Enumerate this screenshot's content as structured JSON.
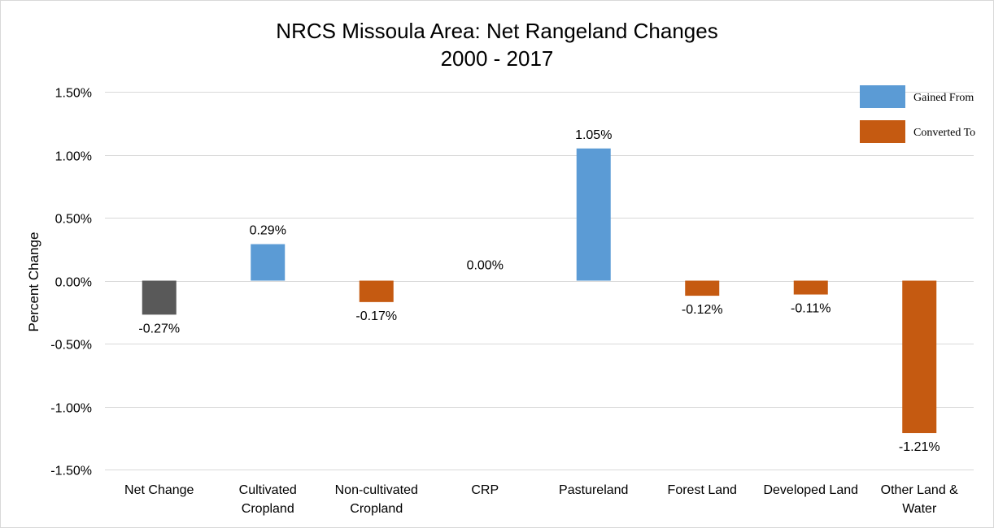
{
  "chart_data": {
    "type": "bar",
    "title": [
      "NRCS Missoula Area: Net Rangeland Changes",
      "2000 - 2017"
    ],
    "ylabel": "Percent Change",
    "xlabel": "",
    "ylim": [
      -1.5,
      1.5
    ],
    "yticks": [
      1.5,
      1.0,
      0.5,
      0.0,
      -0.5,
      -1.0,
      -1.5
    ],
    "ytick_labels": [
      "1.50%",
      "1.00%",
      "0.50%",
      "0.00%",
      "-0.50%",
      "-1.00%",
      "-1.50%"
    ],
    "grid": true,
    "categories": [
      [
        "Net Change"
      ],
      [
        "Cultivated",
        "Cropland"
      ],
      [
        "Non-cultivated",
        "Cropland"
      ],
      [
        "CRP"
      ],
      [
        "Pastureland"
      ],
      [
        "Forest Land"
      ],
      [
        "Developed Land"
      ],
      [
        "Other Land &",
        "Water"
      ]
    ],
    "values": [
      -0.27,
      0.29,
      -0.17,
      0.0,
      1.05,
      -0.12,
      -0.11,
      -1.21
    ],
    "data_labels": [
      "-0.27%",
      "0.29%",
      "-0.17%",
      "0.00%",
      "1.05%",
      "-0.12%",
      "-0.11%",
      "-1.21%"
    ],
    "bar_series": [
      "net",
      "gained",
      "converted",
      "gained",
      "gained",
      "converted",
      "converted",
      "converted"
    ],
    "colors": {
      "net": "#595959",
      "gained": "#5b9bd5",
      "converted": "#c55a11"
    },
    "legend": {
      "position": "top-right",
      "entries": [
        {
          "key": "gained",
          "label": "Gained From"
        },
        {
          "key": "converted",
          "label": "Converted To"
        }
      ]
    }
  }
}
